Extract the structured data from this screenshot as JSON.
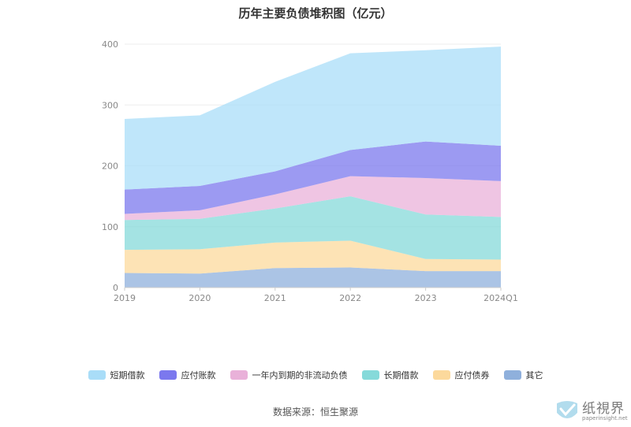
{
  "chart_data": {
    "type": "area",
    "stacked": true,
    "title": "历年主要负债堆积图（亿元）",
    "xlabel": "",
    "ylabel": "",
    "categories": [
      "2019",
      "2020",
      "2021",
      "2022",
      "2023",
      "2024Q1"
    ],
    "yticks": [
      "0",
      "100",
      "200",
      "300",
      "400"
    ],
    "ylim": [
      0,
      400
    ],
    "grid": true,
    "legend_position": "bottom",
    "series": [
      {
        "name": "其它",
        "color": "#8fb0dc",
        "values": [
          24,
          23,
          32,
          33,
          27,
          27
        ]
      },
      {
        "name": "应付债券",
        "color": "#fcd99c",
        "values": [
          38,
          40,
          42,
          44,
          20,
          19
        ]
      },
      {
        "name": "长期借款",
        "color": "#86dada",
        "values": [
          49,
          50,
          56,
          73,
          73,
          70
        ]
      },
      {
        "name": "一年内到期的非流动负债",
        "color": "#e9b1d9",
        "values": [
          10,
          14,
          23,
          33,
          60,
          59
        ]
      },
      {
        "name": "应付账款",
        "color": "#7b78ee",
        "values": [
          40,
          40,
          38,
          43,
          60,
          58
        ]
      },
      {
        "name": "短期借款",
        "color": "#a9ddf8",
        "values": [
          116,
          116,
          147,
          159,
          150,
          163
        ]
      }
    ]
  },
  "legend_order": [
    5,
    4,
    3,
    2,
    1,
    0
  ],
  "source_text": "数据来源：恒生聚源",
  "watermark": {
    "main": "纸視界",
    "sub": "paperinsight.net"
  }
}
